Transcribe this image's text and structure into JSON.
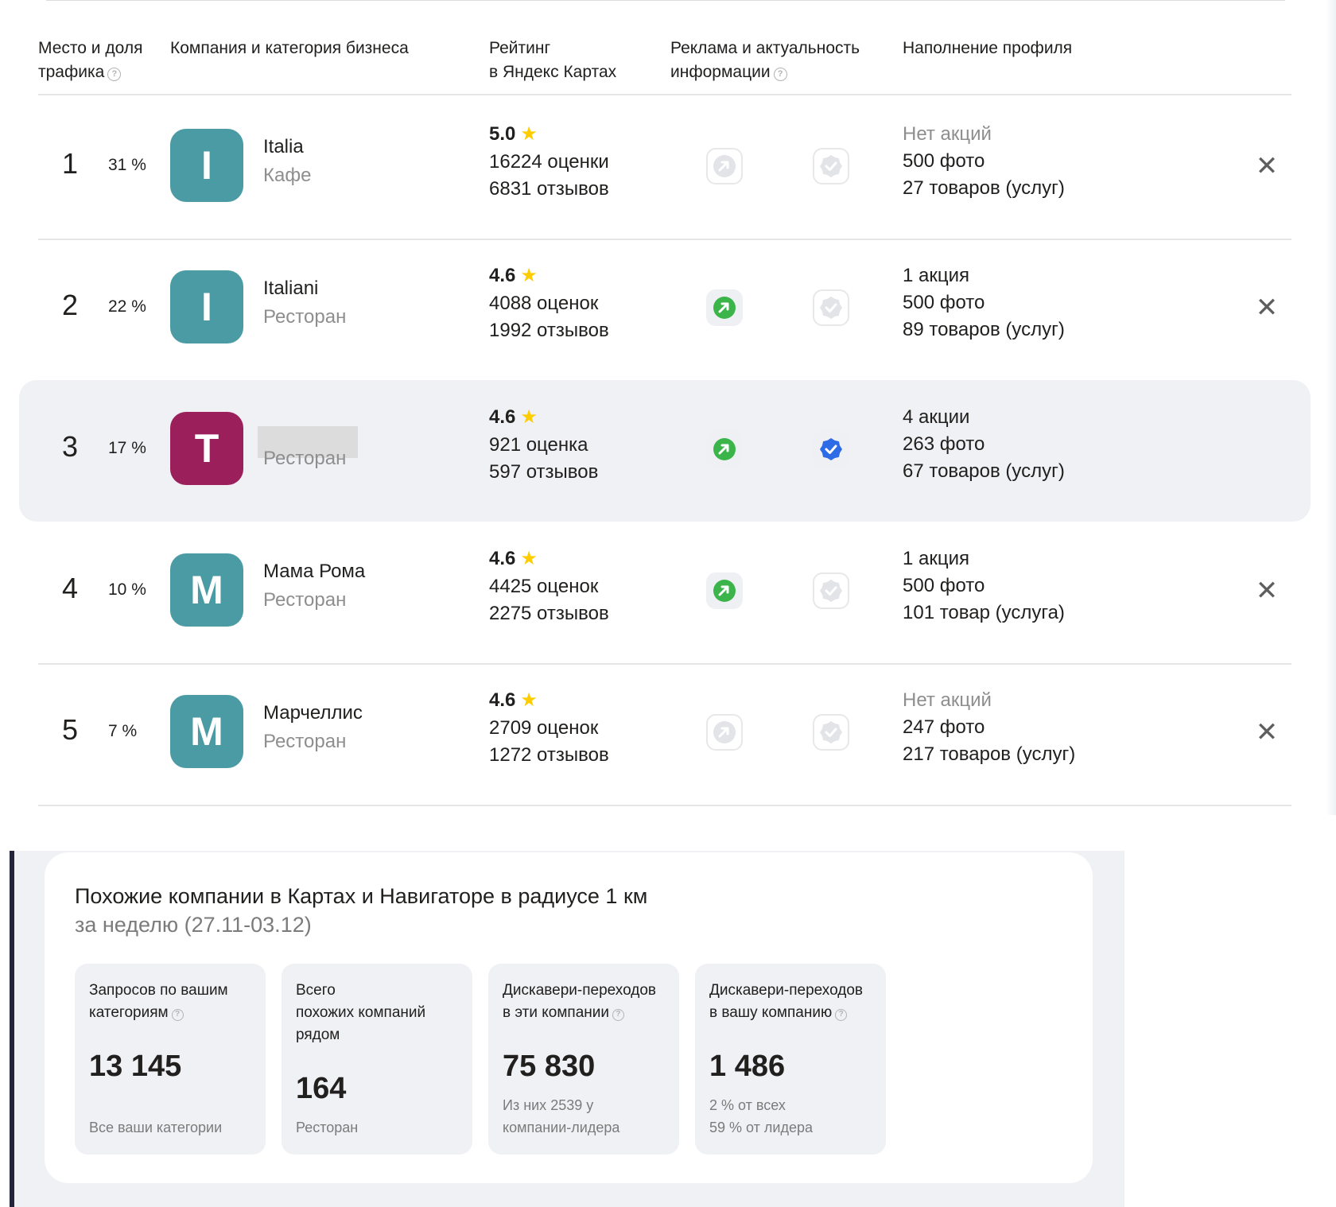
{
  "table": {
    "headers": {
      "rank_share": [
        "Место и доля",
        "трафика"
      ],
      "company": "Компания и категория бизнеса",
      "rating": [
        "Рейтинг",
        "в Яндекс Картах"
      ],
      "ads": [
        "Реклама и актуальность",
        "информации"
      ],
      "profile": "Наполнение профиля"
    },
    "rows": [
      {
        "rank": "1",
        "share": "31 %",
        "initial": "I",
        "avatar_color": "#4a9ba3",
        "name": "Italia",
        "category": "Кафе",
        "rating": "5.0",
        "ratings_count": "16224 оценки",
        "reviews": "6831 отзывов",
        "ad_active": false,
        "verified": false,
        "promos": "Нет акций",
        "promos_muted": true,
        "photos": "500 фото",
        "goods": "27 товаров (услуг)",
        "highlight": false,
        "removable": true
      },
      {
        "rank": "2",
        "share": "22 %",
        "initial": "I",
        "avatar_color": "#4a9ba3",
        "name": "Italiani",
        "category": "Ресторан",
        "rating": "4.6",
        "ratings_count": "4088 оценок",
        "reviews": "1992 отзывов",
        "ad_active": true,
        "verified": false,
        "promos": "1 акция",
        "promos_muted": false,
        "photos": "500 фото",
        "goods": "89 товаров (услуг)",
        "highlight": false,
        "removable": true
      },
      {
        "rank": "3",
        "share": "17 %",
        "initial": "T",
        "avatar_color": "#9b1f5a",
        "name": "",
        "category": "Ресторан",
        "rating": "4.6",
        "ratings_count": "921 оценка",
        "reviews": "597 отзывов",
        "ad_active": true,
        "verified": true,
        "promos": "4 акции",
        "promos_muted": false,
        "photos": "263 фото",
        "goods": "67 товаров (услуг)",
        "highlight": true,
        "removable": false
      },
      {
        "rank": "4",
        "share": "10 %",
        "initial": "М",
        "avatar_color": "#4a9ba3",
        "name": "Мама Рома",
        "category": "Ресторан",
        "rating": "4.6",
        "ratings_count": "4425 оценок",
        "reviews": "2275 отзывов",
        "ad_active": true,
        "verified": false,
        "promos": "1 акция",
        "promos_muted": false,
        "photos": "500 фото",
        "goods": "101 товар (услуга)",
        "highlight": false,
        "removable": true
      },
      {
        "rank": "5",
        "share": "7 %",
        "initial": "М",
        "avatar_color": "#4a9ba3",
        "name": "Марчеллис",
        "category": "Ресторан",
        "rating": "4.6",
        "ratings_count": "2709 оценок",
        "reviews": "1272 отзывов",
        "ad_active": false,
        "verified": false,
        "promos": "Нет акций",
        "promos_muted": true,
        "photos": "247 фото",
        "goods": "217 товаров (услуг)",
        "highlight": false,
        "removable": true
      }
    ],
    "icons": {
      "rating_star": "star-icon",
      "ad": "arrow-icon",
      "verified": "check-badge-icon",
      "remove": "close-icon",
      "hint": "question-icon"
    },
    "colors": {
      "ad_active": "#3bb54a",
      "verified_active": "#2e6be6",
      "star": "#ffcc00"
    }
  },
  "panel": {
    "title": "Похожие компании в Картах и Навигаторе в радиусе 1 км",
    "subtitle": "за неделю (27.11-03.12)",
    "stats": [
      {
        "label_lines": [
          "Запросов по вашим",
          "категориям"
        ],
        "hint": true,
        "value": "13 145",
        "note_lines": [
          "Все ваши категории"
        ]
      },
      {
        "label_lines": [
          "Всего",
          "похожих компаний",
          "рядом"
        ],
        "hint": false,
        "value": "164",
        "note_lines": [
          "Ресторан"
        ]
      },
      {
        "label_lines": [
          "Дискавери-переходов",
          "в эти компании"
        ],
        "hint": true,
        "value": "75 830",
        "note_lines": [
          "Из них 2539 у",
          "компании-лидера"
        ]
      },
      {
        "label_lines": [
          "Дискавери-переходов",
          "в вашу компанию"
        ],
        "hint": true,
        "value": "1 486",
        "note_lines": [
          "2 % от всех",
          "59 % от лидера"
        ]
      }
    ]
  }
}
